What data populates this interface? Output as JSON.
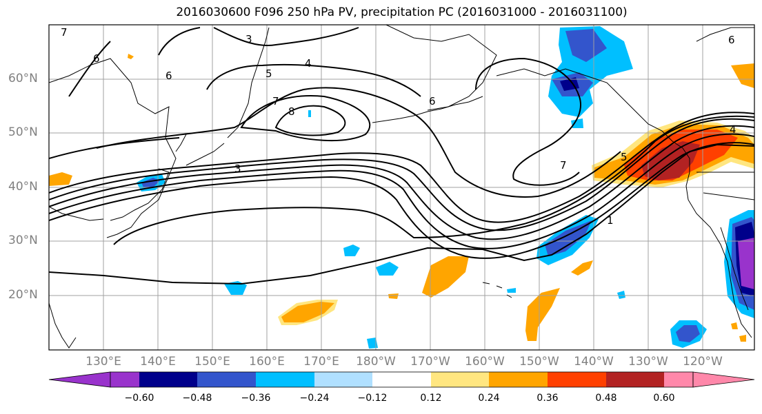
{
  "title": "2016030600 F096 250 hPa PV, precipitation PC (2016031000 - 2016031100)",
  "lat_labels": [
    "60°N",
    "50°N",
    "40°N",
    "30°N",
    "20°N"
  ],
  "lon_labels": [
    "130°E",
    "140°E",
    "150°E",
    "160°E",
    "170°E",
    "180°W",
    "170°W",
    "160°W",
    "150°W",
    "140°W",
    "130°W",
    "120°W"
  ],
  "colorbar": {
    "tick_labels": [
      "−0.60",
      "−0.48",
      "−0.36",
      "−0.24",
      "−0.12",
      "0.12",
      "0.24",
      "0.36",
      "0.48",
      "0.60"
    ],
    "colors": [
      "#9933cc",
      "#00008b",
      "#3355cc",
      "#00bfff",
      "#b0e0ff",
      "#ffffff",
      "#ffe680",
      "#ffa500",
      "#ff4000",
      "#b22222",
      "#ff88aa"
    ]
  },
  "contour_labels": [
    "7",
    "6",
    "3",
    "4",
    "5",
    "7",
    "8",
    "6",
    "6",
    "3",
    "7",
    "5",
    "1",
    "4",
    "6"
  ]
}
